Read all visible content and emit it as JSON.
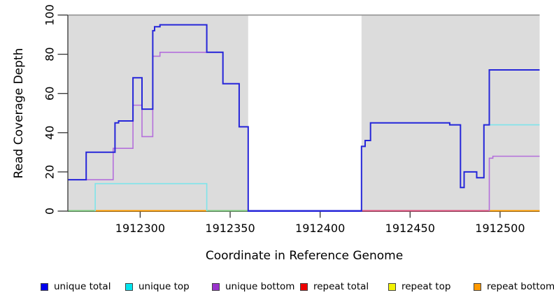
{
  "chart_data": {
    "type": "step_line",
    "title": "",
    "x_axis": {
      "label": "Coordinate in Reference Genome",
      "domain": [
        1912260,
        1912522
      ],
      "ticks": [
        {
          "value": 1912300,
          "label": "1912300"
        },
        {
          "value": 1912350,
          "label": "1912350"
        },
        {
          "value": 1912400,
          "label": "1912400"
        },
        {
          "value": 1912450,
          "label": "1912450"
        },
        {
          "value": 1912500,
          "label": "1912500"
        }
      ]
    },
    "y_axis": {
      "label": "Read Coverage Depth",
      "domain": [
        0,
        100
      ],
      "ticks": [
        {
          "value": 0,
          "label": "0"
        },
        {
          "value": 20,
          "label": "20"
        },
        {
          "value": 40,
          "label": "40"
        },
        {
          "value": 60,
          "label": "60"
        },
        {
          "value": 80,
          "label": "80"
        },
        {
          "value": 100,
          "label": "100"
        }
      ]
    },
    "panel": {
      "background_color": "#dcdcdc",
      "top_border_color": "#8c8c8c",
      "axis_color": "#333333",
      "masked_region": {
        "from": 1912360,
        "to": 1912423,
        "color": "#ffffff"
      }
    },
    "baseline_segments": [
      {
        "from": 1912260,
        "to": 1912275,
        "color": "#7ecb7e"
      },
      {
        "from": 1912275,
        "to": 1912337,
        "color": "#ff9d00"
      },
      {
        "from": 1912337,
        "to": 1912360,
        "color": "#7ecb7e"
      },
      {
        "from": 1912360,
        "to": 1912423,
        "color": "#2626d9"
      },
      {
        "from": 1912423,
        "to": 1912494,
        "color": "#e0517e"
      },
      {
        "from": 1912494,
        "to": 1912522,
        "color": "#ff9d00"
      }
    ],
    "series": [
      {
        "name": "unique total",
        "line_color": "#2626d9",
        "line_width": 2,
        "paths": [
          {
            "end_x": 1912522,
            "points": [
              [
                1912260,
                16
              ],
              [
                1912270,
                30
              ],
              [
                1912286,
                45
              ],
              [
                1912288,
                46
              ],
              [
                1912296,
                68
              ],
              [
                1912301,
                52
              ],
              [
                1912307,
                92
              ],
              [
                1912308,
                94
              ],
              [
                1912311,
                95
              ],
              [
                1912337,
                81
              ],
              [
                1912346,
                65
              ],
              [
                1912355,
                43
              ],
              [
                1912360,
                0
              ],
              [
                1912423,
                33
              ],
              [
                1912425,
                36
              ],
              [
                1912428,
                45
              ],
              [
                1912472,
                44
              ],
              [
                1912478,
                12
              ],
              [
                1912480,
                20
              ],
              [
                1912487,
                17
              ],
              [
                1912491,
                44
              ],
              [
                1912494,
                72
              ]
            ]
          }
        ]
      },
      {
        "name": "unique top",
        "line_color": "#7ee4ea",
        "line_width": 1.6,
        "paths": [
          {
            "end_x": 1912337,
            "points": [
              [
                1912275,
                0
              ],
              [
                1912275,
                14
              ],
              [
                1912337,
                0
              ]
            ]
          },
          {
            "end_x": 1912522,
            "points": [
              [
                1912423,
                0
              ],
              [
                1912423,
                33
              ],
              [
                1912425,
                36
              ],
              [
                1912428,
                45
              ],
              [
                1912472,
                44
              ],
              [
                1912478,
                12
              ],
              [
                1912480,
                20
              ],
              [
                1912487,
                17
              ],
              [
                1912491,
                44
              ]
            ]
          }
        ]
      },
      {
        "name": "unique bottom",
        "line_color": "#b46fdb",
        "line_width": 1.6,
        "paths": [
          {
            "end_x": 1912360,
            "points": [
              [
                1912260,
                16
              ],
              [
                1912285,
                32
              ],
              [
                1912296,
                54
              ],
              [
                1912301,
                38
              ],
              [
                1912307,
                79
              ],
              [
                1912311,
                81
              ],
              [
                1912346,
                65
              ],
              [
                1912355,
                43
              ],
              [
                1912360,
                0
              ]
            ]
          },
          {
            "end_x": 1912522,
            "points": [
              [
                1912494,
                0
              ],
              [
                1912494,
                27
              ],
              [
                1912496,
                28
              ]
            ]
          }
        ]
      },
      {
        "name": "repeat total",
        "line_color": "#e0517e",
        "line_width": 1.6,
        "constant_value": 0,
        "paths": []
      },
      {
        "name": "repeat top",
        "line_color": "#f0f000",
        "line_width": 1.6,
        "constant_value": 0,
        "paths": []
      },
      {
        "name": "repeat bottom",
        "line_color": "#ff9d00",
        "line_width": 1.6,
        "constant_value": 0,
        "paths": []
      }
    ],
    "legend": [
      {
        "label": "unique total",
        "swatch_color": "#0000ee"
      },
      {
        "label": "unique top",
        "swatch_color": "#00e5ee"
      },
      {
        "label": "unique bottom",
        "swatch_color": "#9933cc"
      },
      {
        "label": "repeat total",
        "swatch_color": "#ee0000"
      },
      {
        "label": "repeat top",
        "swatch_color": "#f2f200"
      },
      {
        "label": "repeat bottom",
        "swatch_color": "#ff9900"
      }
    ]
  }
}
